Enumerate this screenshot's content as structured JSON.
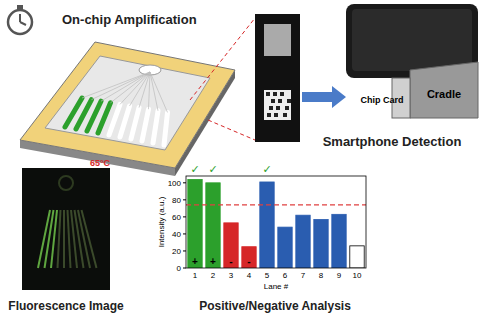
{
  "labels": {
    "amplification": "On-chip Amplification",
    "temperature": "65°C",
    "detection": "Smartphone Detection",
    "chip_card": "Chip Card",
    "cradle": "Cradle",
    "fluorescence": "Fluorescence Image",
    "analysis": "Positive/Negative Analysis"
  },
  "chart_data": {
    "type": "bar",
    "x_label": "Lane #",
    "y_label": "Intensity (a.u.)",
    "categories": [
      "1",
      "2",
      "3",
      "4",
      "5",
      "6",
      "7",
      "8",
      "9",
      "10"
    ],
    "values": [
      104,
      100,
      53,
      25,
      101,
      48,
      62,
      57,
      63,
      26
    ],
    "colors": [
      "#2ca02c",
      "#2ca02c",
      "#d62728",
      "#d62728",
      "#2a5db0",
      "#2a5db0",
      "#2a5db0",
      "#2a5db0",
      "#2a5db0",
      "#ffffff"
    ],
    "ylim": [
      0,
      108
    ],
    "yticks": [
      0,
      20,
      40,
      60,
      80,
      100
    ],
    "threshold": 74,
    "signs": [
      "+",
      "+",
      "-",
      "-",
      null,
      null,
      null,
      null,
      null,
      null
    ],
    "checks": [
      "✓",
      "✓",
      null,
      null,
      "✓",
      null,
      null,
      null,
      null,
      null
    ]
  }
}
